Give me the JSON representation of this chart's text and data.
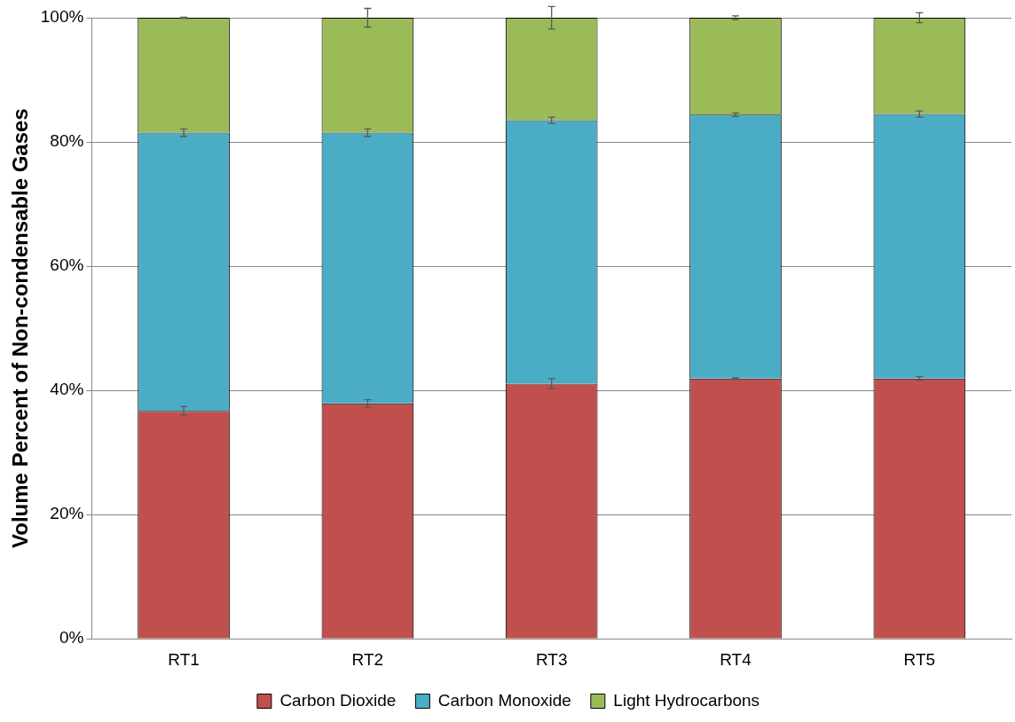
{
  "chart_data": {
    "type": "bar",
    "stacked": true,
    "ylabel": "Volume Percent of Non-condensable Gases",
    "categories": [
      "RT1",
      "RT2",
      "RT3",
      "RT4",
      "RT5"
    ],
    "series": [
      {
        "name": "Carbon Dioxide",
        "color": "#c0504d",
        "values": [
          36.7,
          37.9,
          41.1,
          41.9,
          41.9
        ],
        "errors": [
          0.7,
          0.6,
          0.8,
          0.1,
          0.3
        ]
      },
      {
        "name": "Carbon Monoxide",
        "color": "#4bacc6",
        "values": [
          44.8,
          43.6,
          42.4,
          42.5,
          42.6
        ],
        "errors": [
          0.6,
          0.6,
          0.5,
          0.3,
          0.5
        ]
      },
      {
        "name": "Light Hydrocarbons",
        "color": "#9bbb59",
        "values": [
          18.5,
          18.5,
          16.5,
          15.6,
          15.5
        ],
        "errors": [
          0.1,
          1.5,
          1.8,
          0.3,
          0.8
        ]
      }
    ],
    "ylim": [
      0,
      100
    ],
    "yticks": [
      {
        "value": 0,
        "label": "0%"
      },
      {
        "value": 20,
        "label": "20%"
      },
      {
        "value": 40,
        "label": "40%"
      },
      {
        "value": 60,
        "label": "60%"
      },
      {
        "value": 80,
        "label": "80%"
      },
      {
        "value": 100,
        "label": "100%"
      }
    ],
    "grid": "y",
    "legend": "bottom"
  }
}
